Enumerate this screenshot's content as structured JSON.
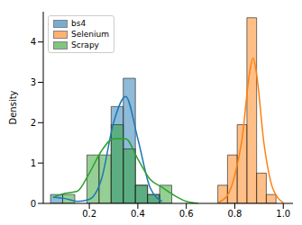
{
  "chart_data": {
    "type": "histogram",
    "y_label": "Density",
    "xlim": [
      0.01,
      1.04
    ],
    "xticks": [
      0.2,
      0.4,
      0.6,
      0.8,
      {
        "value": 1.0,
        "label": "1.0"
      }
    ],
    "ylim": [
      0,
      4.75
    ],
    "yticks": [
      0,
      1,
      2,
      3,
      4
    ],
    "legend": "upper left",
    "series": [
      {
        "name": "bs4",
        "color": "#1f77b4",
        "bins": [
          0.04,
          0.09,
          0.14,
          0.19,
          0.24,
          0.29,
          0.34,
          0.39,
          0.44,
          0.49
        ],
        "values": [
          0.22,
          0,
          0,
          0,
          0,
          2.4,
          3.1,
          0.45,
          0.22
        ],
        "kde": {
          "x": [
            0.05,
            0.1,
            0.15,
            0.2,
            0.25,
            0.3,
            0.35,
            0.4,
            0.45,
            0.5
          ],
          "y": [
            0.15,
            0.12,
            0.05,
            0.1,
            0.6,
            2.0,
            2.65,
            1.6,
            0.4,
            0.05
          ]
        }
      },
      {
        "name": "Selenium",
        "color": "#ff7f0e",
        "bins": [
          0.73,
          0.77,
          0.81,
          0.85,
          0.89,
          0.93,
          0.97
        ],
        "values": [
          0.45,
          1.2,
          1.95,
          4.6,
          0.75,
          0.22
        ],
        "kde": {
          "x": [
            0.73,
            0.77,
            0.8,
            0.83,
            0.86,
            0.875,
            0.89,
            0.92,
            0.95,
            0.98,
            1.0
          ],
          "y": [
            0.02,
            0.2,
            0.7,
            1.6,
            3.2,
            3.6,
            3.2,
            1.5,
            0.5,
            0.12,
            0.02
          ]
        }
      },
      {
        "name": "Scrapy",
        "color": "#2ca02c",
        "bins": [
          0.09,
          0.14,
          0.19,
          0.24,
          0.29,
          0.34,
          0.39,
          0.44,
          0.49,
          0.54
        ],
        "values": [
          0.22,
          0,
          1.2,
          1.2,
          1.95,
          1.35,
          0.45,
          0.22,
          0.45
        ],
        "kde": {
          "x": [
            0.05,
            0.1,
            0.15,
            0.2,
            0.25,
            0.3,
            0.35,
            0.4,
            0.45,
            0.5,
            0.55,
            0.6,
            0.65
          ],
          "y": [
            0.15,
            0.25,
            0.3,
            0.75,
            1.3,
            1.6,
            1.6,
            1.1,
            0.6,
            0.4,
            0.2,
            0.05,
            0.0
          ]
        }
      }
    ]
  }
}
